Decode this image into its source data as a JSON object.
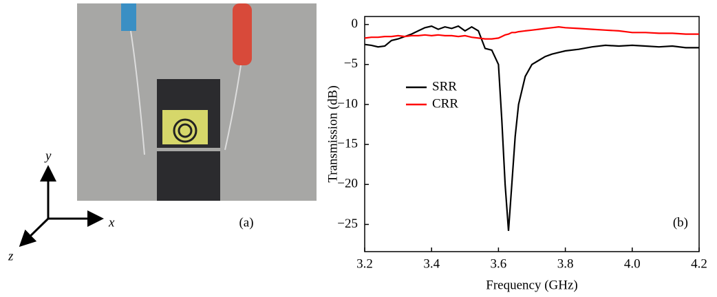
{
  "photo": {
    "label": "(a)",
    "axis_labels": [
      "x",
      "y",
      "z"
    ]
  },
  "chart_data": {
    "type": "line",
    "annotation": "(b)",
    "x_label": "Frequency (GHz)",
    "y_label": "Transmission (dB)",
    "x": [
      3.2,
      3.22,
      3.24,
      3.26,
      3.28,
      3.3,
      3.32,
      3.34,
      3.36,
      3.38,
      3.4,
      3.42,
      3.44,
      3.46,
      3.48,
      3.5,
      3.52,
      3.54,
      3.56,
      3.58,
      3.6,
      3.61,
      3.62,
      3.63,
      3.64,
      3.65,
      3.66,
      3.68,
      3.7,
      3.72,
      3.74,
      3.76,
      3.78,
      3.8,
      3.84,
      3.88,
      3.92,
      3.96,
      4.0,
      4.04,
      4.08,
      4.12,
      4.16,
      4.2
    ],
    "series": [
      {
        "name": "SRR",
        "color": "#000000",
        "values": [
          -2.5,
          -2.6,
          -2.8,
          -2.7,
          -2.0,
          -1.8,
          -1.5,
          -1.2,
          -0.8,
          -0.4,
          -0.2,
          -0.6,
          -0.3,
          -0.5,
          -0.2,
          -0.8,
          -0.3,
          -0.8,
          -3.0,
          -3.2,
          -5,
          -12,
          -20,
          -25.8,
          -20,
          -14,
          -10,
          -6.5,
          -5,
          -4.5,
          -4,
          -3.7,
          -3.5,
          -3.3,
          -3.1,
          -2.8,
          -2.6,
          -2.7,
          -2.6,
          -2.7,
          -2.8,
          -2.7,
          -2.9,
          -2.9
        ]
      },
      {
        "name": "CRR",
        "color": "#ff0000",
        "values": [
          -1.7,
          -1.6,
          -1.6,
          -1.5,
          -1.5,
          -1.4,
          -1.5,
          -1.4,
          -1.4,
          -1.3,
          -1.4,
          -1.3,
          -1.4,
          -1.4,
          -1.5,
          -1.4,
          -1.6,
          -1.7,
          -1.8,
          -1.8,
          -1.7,
          -1.5,
          -1.3,
          -1.2,
          -1.0,
          -1.0,
          -0.9,
          -0.8,
          -0.7,
          -0.6,
          -0.5,
          -0.4,
          -0.3,
          -0.4,
          -0.5,
          -0.6,
          -0.7,
          -0.8,
          -1.0,
          -1.0,
          -1.1,
          -1.1,
          -1.2,
          -1.2
        ]
      }
    ],
    "xlim": [
      3.2,
      4.2
    ],
    "xticks": [
      3.2,
      3.4,
      3.6,
      3.8,
      {
        "value": 4.0,
        "label": "4.0"
      },
      4.2
    ],
    "ylim": [
      -28.4,
      1
    ],
    "yticks": [
      0,
      {
        "value": -5,
        "label": "−5"
      },
      {
        "value": -10,
        "label": "−10"
      },
      {
        "value": -15,
        "label": "−15"
      },
      {
        "value": -20,
        "label": "−20"
      },
      {
        "value": -25,
        "label": "−25"
      }
    ],
    "legend": "upper left"
  }
}
